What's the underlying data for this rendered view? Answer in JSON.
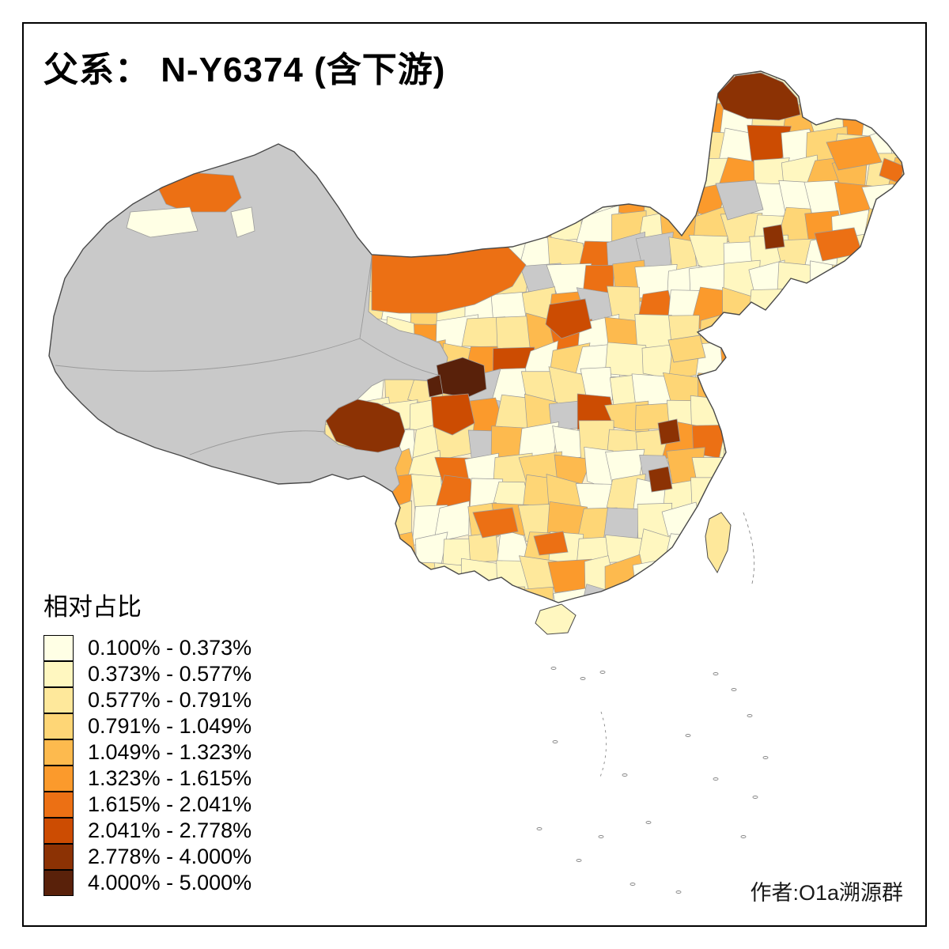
{
  "title": "父系： N-Y6374 (含下游)",
  "legend": {
    "title": "相对占比",
    "no_data_color": "#C9C9C9",
    "items": [
      {
        "label": "0.100% - 0.373%",
        "color": "#FFFFE5"
      },
      {
        "label": "0.373% - 0.577%",
        "color": "#FFF7C0"
      },
      {
        "label": "0.577% - 0.791%",
        "color": "#FEE89B"
      },
      {
        "label": "0.791% - 1.049%",
        "color": "#FED676"
      },
      {
        "label": "1.049% - 1.323%",
        "color": "#FDBA4E"
      },
      {
        "label": "1.323% - 1.615%",
        "color": "#FB9A2C"
      },
      {
        "label": "1.615% - 2.041%",
        "color": "#EC7014"
      },
      {
        "label": "2.041% - 2.778%",
        "color": "#CC4C02"
      },
      {
        "label": "2.778% - 4.000%",
        "color": "#8C3204"
      },
      {
        "label": "4.000% - 5.000%",
        "color": "#59210A"
      }
    ]
  },
  "author": "作者:O1a溯源群"
}
